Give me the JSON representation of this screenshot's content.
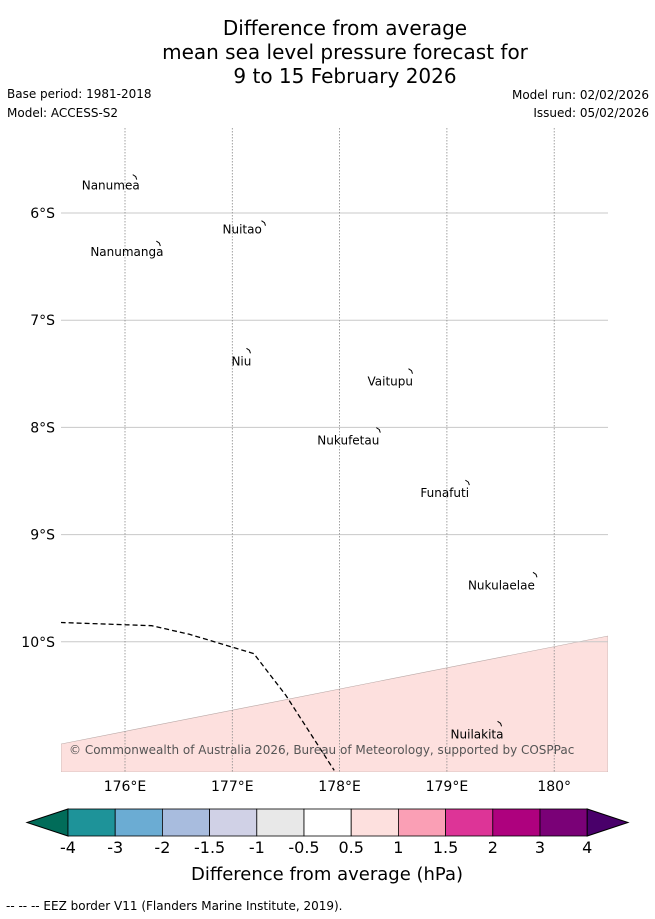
{
  "title": {
    "line1": "Difference from average",
    "line2": "mean sea level pressure forecast for",
    "line3": "9 to 15 February 2026"
  },
  "meta": {
    "base_period": "Base period: 1981-2018",
    "model": "Model: ACCESS-S2",
    "model_run": "Model run: 02/02/2026",
    "issued": "Issued: 05/02/2026"
  },
  "map": {
    "lon_range": [
      175.4,
      180.5
    ],
    "lat_range": [
      -5.2,
      -11.2
    ],
    "lat_ticks": [
      {
        "value": -6,
        "label": "6°S"
      },
      {
        "value": -7,
        "label": "7°S"
      },
      {
        "value": -8,
        "label": "8°S"
      },
      {
        "value": -9,
        "label": "9°S"
      },
      {
        "value": -10,
        "label": "10°S"
      }
    ],
    "lon_ticks": [
      {
        "value": 176,
        "label": "176°E"
      },
      {
        "value": 177,
        "label": "177°E"
      },
      {
        "value": 178,
        "label": "178°E"
      },
      {
        "value": 179,
        "label": "179°E"
      },
      {
        "value": 180,
        "label": "180°"
      }
    ],
    "islands": [
      {
        "name": "Nanumea",
        "lon": 176.1,
        "lat": -5.67
      },
      {
        "name": "Nuitao",
        "lon": 177.3,
        "lat": -6.1
      },
      {
        "name": "Nanumanga",
        "lon": 176.32,
        "lat": -6.29
      },
      {
        "name": "Niu",
        "lon": 177.16,
        "lat": -7.29
      },
      {
        "name": "Vaitupu",
        "lon": 178.67,
        "lat": -7.48
      },
      {
        "name": "Nukufetau",
        "lon": 178.37,
        "lat": -8.03
      },
      {
        "name": "Funafuti",
        "lon": 179.2,
        "lat": -8.52
      },
      {
        "name": "Nukulaelae",
        "lon": 179.83,
        "lat": -9.38
      },
      {
        "name": "Nuilakita",
        "lon": 179.5,
        "lat": -10.77
      }
    ],
    "anomaly_region_value": "0.5 to 1",
    "anomaly_color": "#fde0de",
    "eez_border_points": [
      [
        175.4,
        -9.82
      ],
      [
        175.7,
        -9.83
      ],
      [
        176.25,
        -9.85
      ],
      [
        176.6,
        -9.93
      ],
      [
        177.2,
        -10.11
      ],
      [
        177.5,
        -10.5
      ],
      [
        177.95,
        -11.2
      ]
    ],
    "copyright": "© Commonwealth of Australia 2026, Bureau of Meteorology, supported by COSPPac"
  },
  "colorbar": {
    "title": "Difference from average (hPa)",
    "tick_labels": [
      "-4",
      "-3",
      "-2",
      "-1.5",
      "-1",
      "-0.5",
      "0.5",
      "1",
      "1.5",
      "2",
      "3",
      "4"
    ],
    "colors": [
      "#1e9399",
      "#6bacd3",
      "#a8bcde",
      "#d0d1e6",
      "#e8e8e8",
      "#ffffff",
      "#fde0de",
      "#fa9fb5",
      "#dd3497",
      "#ae017e",
      "#7a0177"
    ],
    "low_extend_color": "#016c59",
    "high_extend_color": "#49006a"
  },
  "footnote": "-- -- -- EEZ border V11 (Flanders Marine Institute, 2019)."
}
